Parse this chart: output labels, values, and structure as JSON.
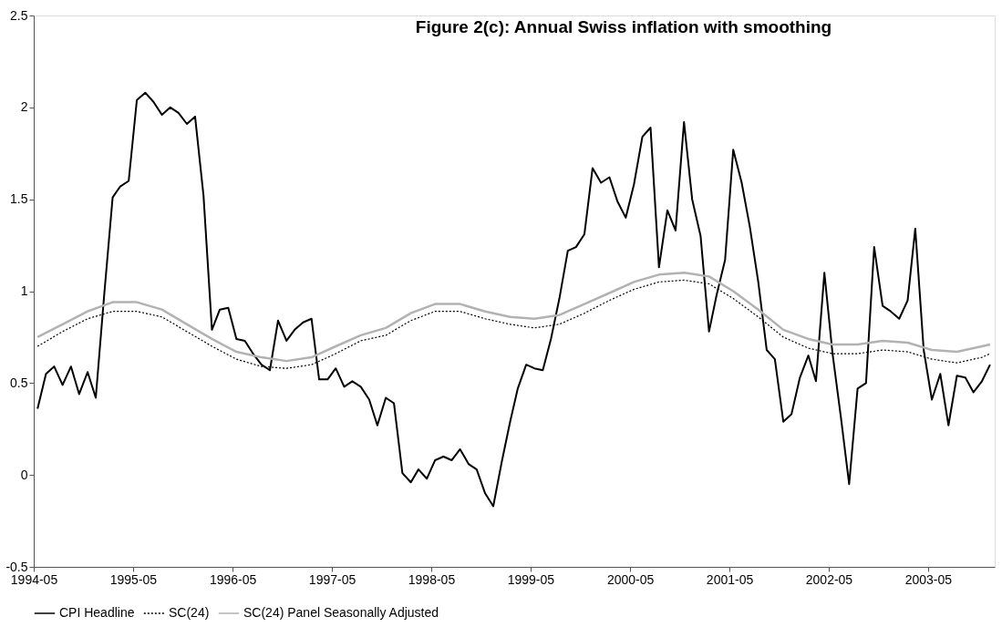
{
  "chart_data": {
    "type": "line",
    "title": "Figure 2(c): Annual Swiss inflation with smoothing",
    "xlim": [
      "1994-05-01",
      "2004-01-01"
    ],
    "xticks": [
      {
        "value": "1994-05-01",
        "label": "1994-05"
      },
      {
        "value": "1995-05-01",
        "label": "1995-05"
      },
      {
        "value": "1996-05-01",
        "label": "1996-05"
      },
      {
        "value": "1997-05-01",
        "label": "1997-05"
      },
      {
        "value": "1998-05-01",
        "label": "1998-05"
      },
      {
        "value": "1999-05-01",
        "label": "1999-05"
      },
      {
        "value": "2000-05-01",
        "label": "2000-05"
      },
      {
        "value": "2001-05-01",
        "label": "2001-05"
      },
      {
        "value": "2002-05-01",
        "label": "2002-05"
      },
      {
        "value": "2003-05-01",
        "label": "2003-05"
      }
    ],
    "ylim": [
      -0.5,
      2.5
    ],
    "yticks": [
      -0.5,
      0,
      0.5,
      1,
      1.5,
      2,
      2.5
    ],
    "grid": false,
    "legend": "bottom",
    "series": [
      {
        "name": "CPI Headline",
        "color": "#000000",
        "line_style": "solid",
        "x": [
          "1994-05-15",
          "1994-06-15",
          "1994-07-15",
          "1994-08-15",
          "1994-09-15",
          "1994-10-15",
          "1994-11-15",
          "1994-12-15",
          "1995-01-15",
          "1995-02-15",
          "1995-03-15",
          "1995-04-15",
          "1995-05-15",
          "1995-06-15",
          "1995-07-15",
          "1995-08-15",
          "1995-09-15",
          "1995-10-15",
          "1995-11-15",
          "1995-12-15",
          "1996-01-15",
          "1996-02-15",
          "1996-03-15",
          "1996-04-15",
          "1996-05-15",
          "1996-06-15",
          "1996-07-15",
          "1996-08-15",
          "1996-09-15",
          "1996-10-15",
          "1996-11-15",
          "1996-12-15",
          "1997-01-15",
          "1997-02-15",
          "1997-03-15",
          "1997-04-15",
          "1997-05-15",
          "1997-06-15",
          "1997-07-15",
          "1997-08-15",
          "1997-09-15",
          "1997-10-15",
          "1997-11-15",
          "1997-12-15",
          "1998-01-15",
          "1998-02-15",
          "1998-03-15",
          "1998-04-15",
          "1998-05-15",
          "1998-06-15",
          "1998-07-15",
          "1998-08-15",
          "1998-09-15",
          "1998-10-15",
          "1998-11-15",
          "1998-12-15",
          "1999-01-15",
          "1999-02-15",
          "1999-03-15",
          "1999-04-15",
          "1999-05-15",
          "1999-06-15",
          "1999-07-15",
          "1999-08-15",
          "1999-09-15",
          "1999-10-15",
          "1999-11-15",
          "1999-12-15",
          "2000-01-15",
          "2000-02-15",
          "2000-03-15",
          "2000-04-15",
          "2000-05-15",
          "2000-06-15",
          "2000-07-15",
          "2000-08-15",
          "2000-09-15",
          "2000-10-15",
          "2000-11-15",
          "2000-12-15",
          "2001-01-15",
          "2001-02-15",
          "2001-03-15",
          "2001-04-15",
          "2001-05-15",
          "2001-06-15",
          "2001-07-15",
          "2001-08-15",
          "2001-09-15",
          "2001-10-15",
          "2001-11-15",
          "2001-12-15",
          "2002-01-15",
          "2002-02-15",
          "2002-03-15",
          "2002-04-15",
          "2002-05-15",
          "2002-06-15",
          "2002-07-15",
          "2002-08-15",
          "2002-09-15",
          "2002-10-15",
          "2002-11-15",
          "2002-12-15",
          "2003-01-15",
          "2003-02-15",
          "2003-03-15",
          "2003-04-15",
          "2003-05-15",
          "2003-06-15",
          "2003-07-15",
          "2003-08-15",
          "2003-09-15",
          "2003-10-15",
          "2003-11-15",
          "2003-12-15"
        ],
        "values": [
          0.36,
          0.55,
          0.59,
          0.49,
          0.59,
          0.44,
          0.56,
          0.42,
          0.98,
          1.51,
          1.57,
          1.6,
          2.04,
          2.08,
          2.03,
          1.96,
          2.0,
          1.97,
          1.91,
          1.95,
          1.52,
          0.79,
          0.9,
          0.91,
          0.74,
          0.73,
          0.66,
          0.6,
          0.57,
          0.84,
          0.73,
          0.79,
          0.83,
          0.85,
          0.52,
          0.52,
          0.58,
          0.48,
          0.51,
          0.48,
          0.41,
          0.27,
          0.42,
          0.39,
          0.01,
          -0.04,
          0.03,
          -0.02,
          0.08,
          0.1,
          0.08,
          0.14,
          0.06,
          0.03,
          -0.1,
          -0.17,
          0.07,
          0.29,
          0.47,
          0.6,
          0.58,
          0.57,
          0.74,
          0.96,
          1.22,
          1.24,
          1.31,
          1.67,
          1.59,
          1.62,
          1.49,
          1.4,
          1.58,
          1.84,
          1.89,
          1.13,
          1.44,
          1.33,
          1.92,
          1.5,
          1.3,
          0.78,
          0.98,
          1.17,
          1.77,
          1.59,
          1.35,
          1.05,
          0.68,
          0.63,
          0.29,
          0.33,
          0.53,
          0.65,
          0.51,
          1.1,
          0.66,
          0.31,
          -0.05,
          0.47,
          0.5,
          1.24,
          0.92,
          0.89,
          0.85,
          0.95,
          1.34,
          0.68,
          0.41,
          0.55,
          0.27,
          0.54,
          0.53,
          0.45,
          0.51,
          0.6
        ]
      },
      {
        "name": "SC(24)",
        "color": "#000000",
        "line_style": "dotted",
        "x": [
          "1994-05-15",
          "1994-08-15",
          "1994-11-15",
          "1995-02-15",
          "1995-05-15",
          "1995-08-15",
          "1995-11-15",
          "1996-02-15",
          "1996-05-15",
          "1996-08-15",
          "1996-11-15",
          "1997-02-15",
          "1997-05-15",
          "1997-08-15",
          "1997-11-15",
          "1998-02-15",
          "1998-05-15",
          "1998-08-15",
          "1998-11-15",
          "1999-02-15",
          "1999-05-15",
          "1999-08-15",
          "1999-11-15",
          "2000-02-15",
          "2000-05-15",
          "2000-08-15",
          "2000-11-15",
          "2001-02-15",
          "2001-05-15",
          "2001-08-15",
          "2001-11-15",
          "2002-02-15",
          "2002-05-15",
          "2002-08-15",
          "2002-11-15",
          "2003-02-15",
          "2003-05-15",
          "2003-08-15",
          "2003-11-15",
          "2003-12-15"
        ],
        "values": [
          0.7,
          0.78,
          0.85,
          0.89,
          0.89,
          0.86,
          0.78,
          0.7,
          0.63,
          0.59,
          0.58,
          0.6,
          0.66,
          0.73,
          0.76,
          0.84,
          0.89,
          0.89,
          0.85,
          0.82,
          0.8,
          0.82,
          0.88,
          0.95,
          1.01,
          1.05,
          1.06,
          1.04,
          0.96,
          0.86,
          0.75,
          0.69,
          0.66,
          0.66,
          0.68,
          0.67,
          0.63,
          0.61,
          0.64,
          0.66
        ]
      },
      {
        "name": "SC(24)  Panel Seasonally Adjusted",
        "color": "#b2b2b2",
        "line_style": "solid",
        "x": [
          "1994-05-15",
          "1994-08-15",
          "1994-11-15",
          "1995-02-15",
          "1995-05-15",
          "1995-08-15",
          "1995-11-15",
          "1996-02-15",
          "1996-05-15",
          "1996-08-15",
          "1996-11-15",
          "1997-02-15",
          "1997-05-15",
          "1997-08-15",
          "1997-11-15",
          "1998-02-15",
          "1998-05-15",
          "1998-08-15",
          "1998-11-15",
          "1999-02-15",
          "1999-05-15",
          "1999-08-15",
          "1999-11-15",
          "2000-02-15",
          "2000-05-15",
          "2000-08-15",
          "2000-11-15",
          "2001-02-15",
          "2001-05-15",
          "2001-08-15",
          "2001-11-15",
          "2002-02-15",
          "2002-05-15",
          "2002-08-15",
          "2002-11-15",
          "2003-02-15",
          "2003-05-15",
          "2003-08-15",
          "2003-11-15",
          "2003-12-15"
        ],
        "values": [
          0.75,
          0.82,
          0.89,
          0.94,
          0.94,
          0.9,
          0.82,
          0.74,
          0.67,
          0.64,
          0.62,
          0.64,
          0.7,
          0.76,
          0.8,
          0.88,
          0.93,
          0.93,
          0.89,
          0.86,
          0.85,
          0.87,
          0.93,
          0.99,
          1.05,
          1.09,
          1.1,
          1.08,
          1.0,
          0.9,
          0.79,
          0.74,
          0.71,
          0.71,
          0.73,
          0.72,
          0.68,
          0.67,
          0.7,
          0.71
        ]
      }
    ]
  }
}
